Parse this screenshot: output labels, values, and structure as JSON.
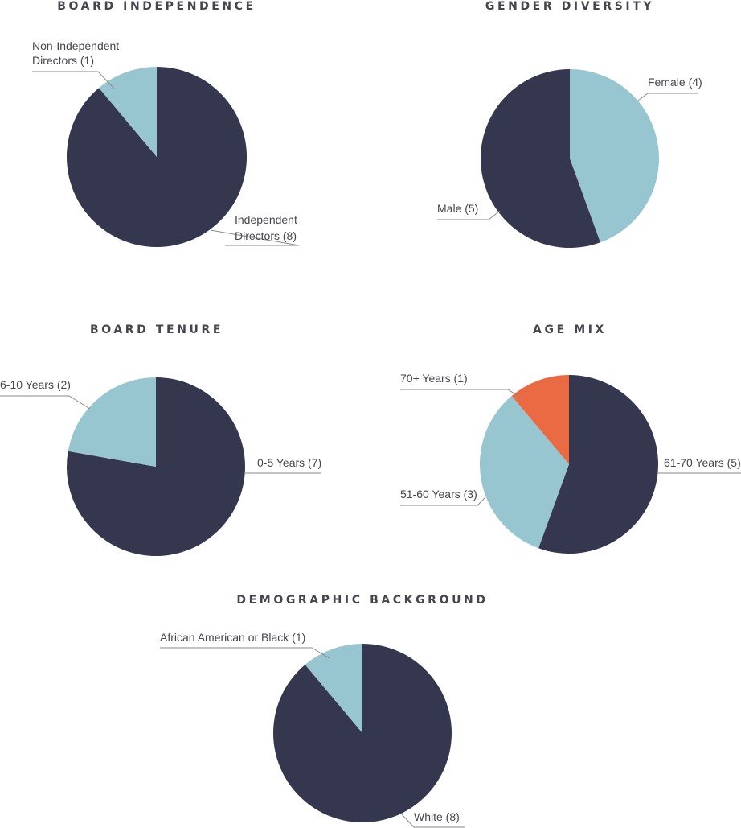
{
  "colors": {
    "navy": "#35374e",
    "light_blue": "#97c5d0",
    "orange": "#e96a43"
  },
  "chart_data": [
    {
      "type": "pie",
      "title": "BOARD INDEPENDENCE",
      "slices": [
        {
          "label": [
            "Independent",
            "Directors (8)"
          ],
          "value": 8,
          "color": "#35374e"
        },
        {
          "label": [
            "Non-Independent",
            "Directors (1)"
          ],
          "value": 1,
          "color": "#97c5d0"
        }
      ]
    },
    {
      "type": "pie",
      "title": "GENDER DIVERSITY",
      "slices": [
        {
          "label": [
            "Female (4)"
          ],
          "value": 4,
          "color": "#97c5d0"
        },
        {
          "label": [
            "Male (5)"
          ],
          "value": 5,
          "color": "#35374e"
        }
      ]
    },
    {
      "type": "pie",
      "title": "BOARD TENURE",
      "slices": [
        {
          "label": [
            "0-5 Years (7)"
          ],
          "value": 7,
          "color": "#35374e"
        },
        {
          "label": [
            "6-10 Years (2)"
          ],
          "value": 2,
          "color": "#97c5d0"
        }
      ]
    },
    {
      "type": "pie",
      "title": "AGE MIX",
      "slices": [
        {
          "label": [
            "61-70 Years (5)"
          ],
          "value": 5,
          "color": "#35374e"
        },
        {
          "label": [
            "51-60 Years (3)"
          ],
          "value": 3,
          "color": "#97c5d0"
        },
        {
          "label": [
            "70+ Years (1)"
          ],
          "value": 1,
          "color": "#e96a43"
        }
      ]
    },
    {
      "type": "pie",
      "title": "DEMOGRAPHIC BACKGROUND",
      "slices": [
        {
          "label": [
            "White (8)"
          ],
          "value": 8,
          "color": "#35374e"
        },
        {
          "label": [
            "African American or Black (1)"
          ],
          "value": 1,
          "color": "#97c5d0"
        }
      ]
    }
  ]
}
